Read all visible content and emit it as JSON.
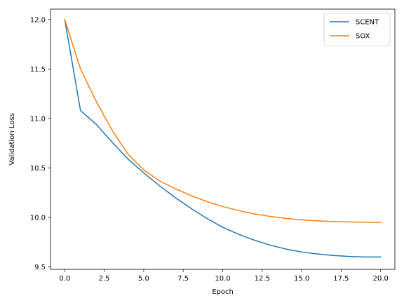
{
  "chart_data": {
    "type": "line",
    "title": "",
    "xlabel": "Epoch",
    "ylabel": "Validation Loss",
    "xlim": [
      -0.9,
      20.9
    ],
    "ylim": [
      9.475,
      12.105
    ],
    "x_ticks": [
      0.0,
      2.5,
      5.0,
      7.5,
      10.0,
      12.5,
      15.0,
      17.5,
      20.0
    ],
    "x_tick_labels": [
      "0.0",
      "2.5",
      "5.0",
      "7.5",
      "10.0",
      "12.5",
      "15.0",
      "17.5",
      "20.0"
    ],
    "y_ticks": [
      9.5,
      10.0,
      10.5,
      11.0,
      11.5,
      12.0
    ],
    "y_tick_labels": [
      "9.5",
      "10.0",
      "10.5",
      "11.0",
      "11.5",
      "12.0"
    ],
    "grid": false,
    "legend_position": "top-right",
    "x": [
      0,
      1,
      2,
      3,
      4,
      5,
      6,
      7,
      8,
      9,
      10,
      11,
      12,
      13,
      14,
      15,
      16,
      17,
      18,
      19,
      20
    ],
    "series": [
      {
        "name": "SCENT",
        "color": "#1f77b4",
        "values": [
          12.0,
          11.08,
          10.94,
          10.76,
          10.59,
          10.45,
          10.32,
          10.2,
          10.09,
          9.99,
          9.9,
          9.83,
          9.77,
          9.72,
          9.68,
          9.65,
          9.63,
          9.615,
          9.605,
          9.6,
          9.6
        ]
      },
      {
        "name": "SOX",
        "color": "#ff7f0e",
        "values": [
          12.0,
          11.5,
          11.17,
          10.88,
          10.64,
          10.48,
          10.37,
          10.29,
          10.22,
          10.16,
          10.11,
          10.07,
          10.035,
          10.01,
          9.99,
          9.975,
          9.965,
          9.958,
          9.954,
          9.951,
          9.95
        ]
      }
    ]
  }
}
